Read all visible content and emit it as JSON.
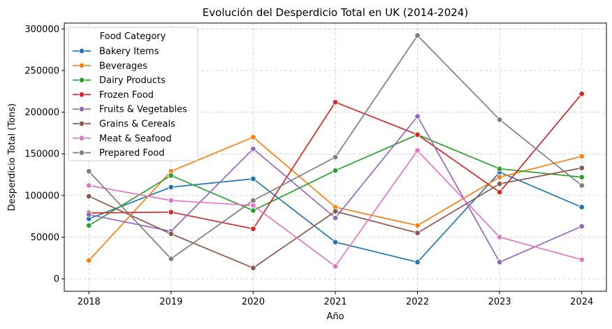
{
  "chart_data": {
    "type": "line",
    "title": "Evolución del Desperdicio Total en UK (2014-2024)",
    "xlabel": "Año",
    "ylabel": "Desperdicio Total (Tons)",
    "x": [
      2018,
      2019,
      2020,
      2021,
      2022,
      2023,
      2024
    ],
    "ylim": [
      0,
      300000
    ],
    "yticks": [
      0,
      50000,
      100000,
      150000,
      200000,
      250000,
      300000
    ],
    "ytick_labels": [
      "0",
      "50000",
      "100000",
      "150000",
      "200000",
      "250000",
      "300000"
    ],
    "xtick_labels": [
      "2018",
      "2019",
      "2020",
      "2021",
      "2022",
      "2023",
      "2024"
    ],
    "grid": true,
    "legend_title": "Food Category",
    "legend_position": "top-left",
    "series": [
      {
        "name": "Bakery Items",
        "color": "#1f77b4",
        "values": [
          72000,
          110000,
          120000,
          44000,
          20000,
          128000,
          86000
        ]
      },
      {
        "name": "Beverages",
        "color": "#ff7f0e",
        "values": [
          22000,
          129000,
          170000,
          86000,
          64000,
          122000,
          147000
        ]
      },
      {
        "name": "Dairy Products",
        "color": "#2ca02c",
        "values": [
          64000,
          124000,
          82000,
          130000,
          173000,
          132000,
          122000
        ]
      },
      {
        "name": "Frozen Food",
        "color": "#d62728",
        "values": [
          79000,
          80000,
          60000,
          212000,
          173000,
          104000,
          222000
        ]
      },
      {
        "name": "Fruits & Vegetables",
        "color": "#9467bd",
        "values": [
          77000,
          57000,
          156000,
          73000,
          195000,
          20000,
          63000
        ]
      },
      {
        "name": "Grains & Cereals",
        "color": "#8c564b",
        "values": [
          99000,
          54000,
          13000,
          81000,
          55000,
          114000,
          133000
        ]
      },
      {
        "name": "Meat & Seafood",
        "color": "#e377c2",
        "values": [
          112000,
          94000,
          88000,
          15000,
          154000,
          50000,
          23000
        ]
      },
      {
        "name": "Prepared Food",
        "color": "#7f7f7f",
        "values": [
          129000,
          24000,
          94000,
          146000,
          292000,
          191000,
          112000
        ]
      }
    ]
  }
}
